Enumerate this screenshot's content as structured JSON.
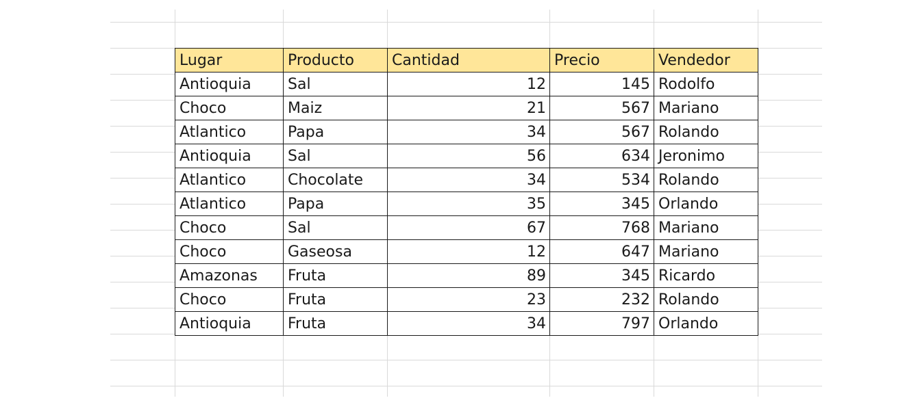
{
  "table": {
    "headers": [
      "Lugar",
      "Producto",
      "Cantidad",
      "Precio",
      "Vendedor"
    ],
    "rows": [
      [
        "Antioquia",
        "Sal",
        "12",
        "145",
        "Rodolfo"
      ],
      [
        "Choco",
        "Maiz",
        "21",
        "567",
        "Mariano"
      ],
      [
        "Atlantico",
        "Papa",
        "34",
        "567",
        "Rolando"
      ],
      [
        "Antioquia",
        "Sal",
        "56",
        "634",
        "Jeronimo"
      ],
      [
        "Atlantico",
        "Chocolate",
        "34",
        "534",
        "Rolando"
      ],
      [
        "Atlantico",
        "Papa",
        "35",
        "345",
        "Orlando"
      ],
      [
        "Choco",
        "Sal",
        "67",
        "768",
        "Mariano"
      ],
      [
        "Choco",
        "Gaseosa",
        "12",
        "647",
        "Mariano"
      ],
      [
        "Amazonas",
        "Fruta",
        "89",
        "345",
        "Ricardo"
      ],
      [
        "Choco",
        "Fruta",
        "23",
        "232",
        "Rolando"
      ],
      [
        "Antioquia",
        "Fruta",
        "34",
        "797",
        "Orlando"
      ]
    ]
  },
  "colors": {
    "header_fill": "#ffe699",
    "gridline": "#d9d9d9",
    "border": "#1a1a1a"
  }
}
